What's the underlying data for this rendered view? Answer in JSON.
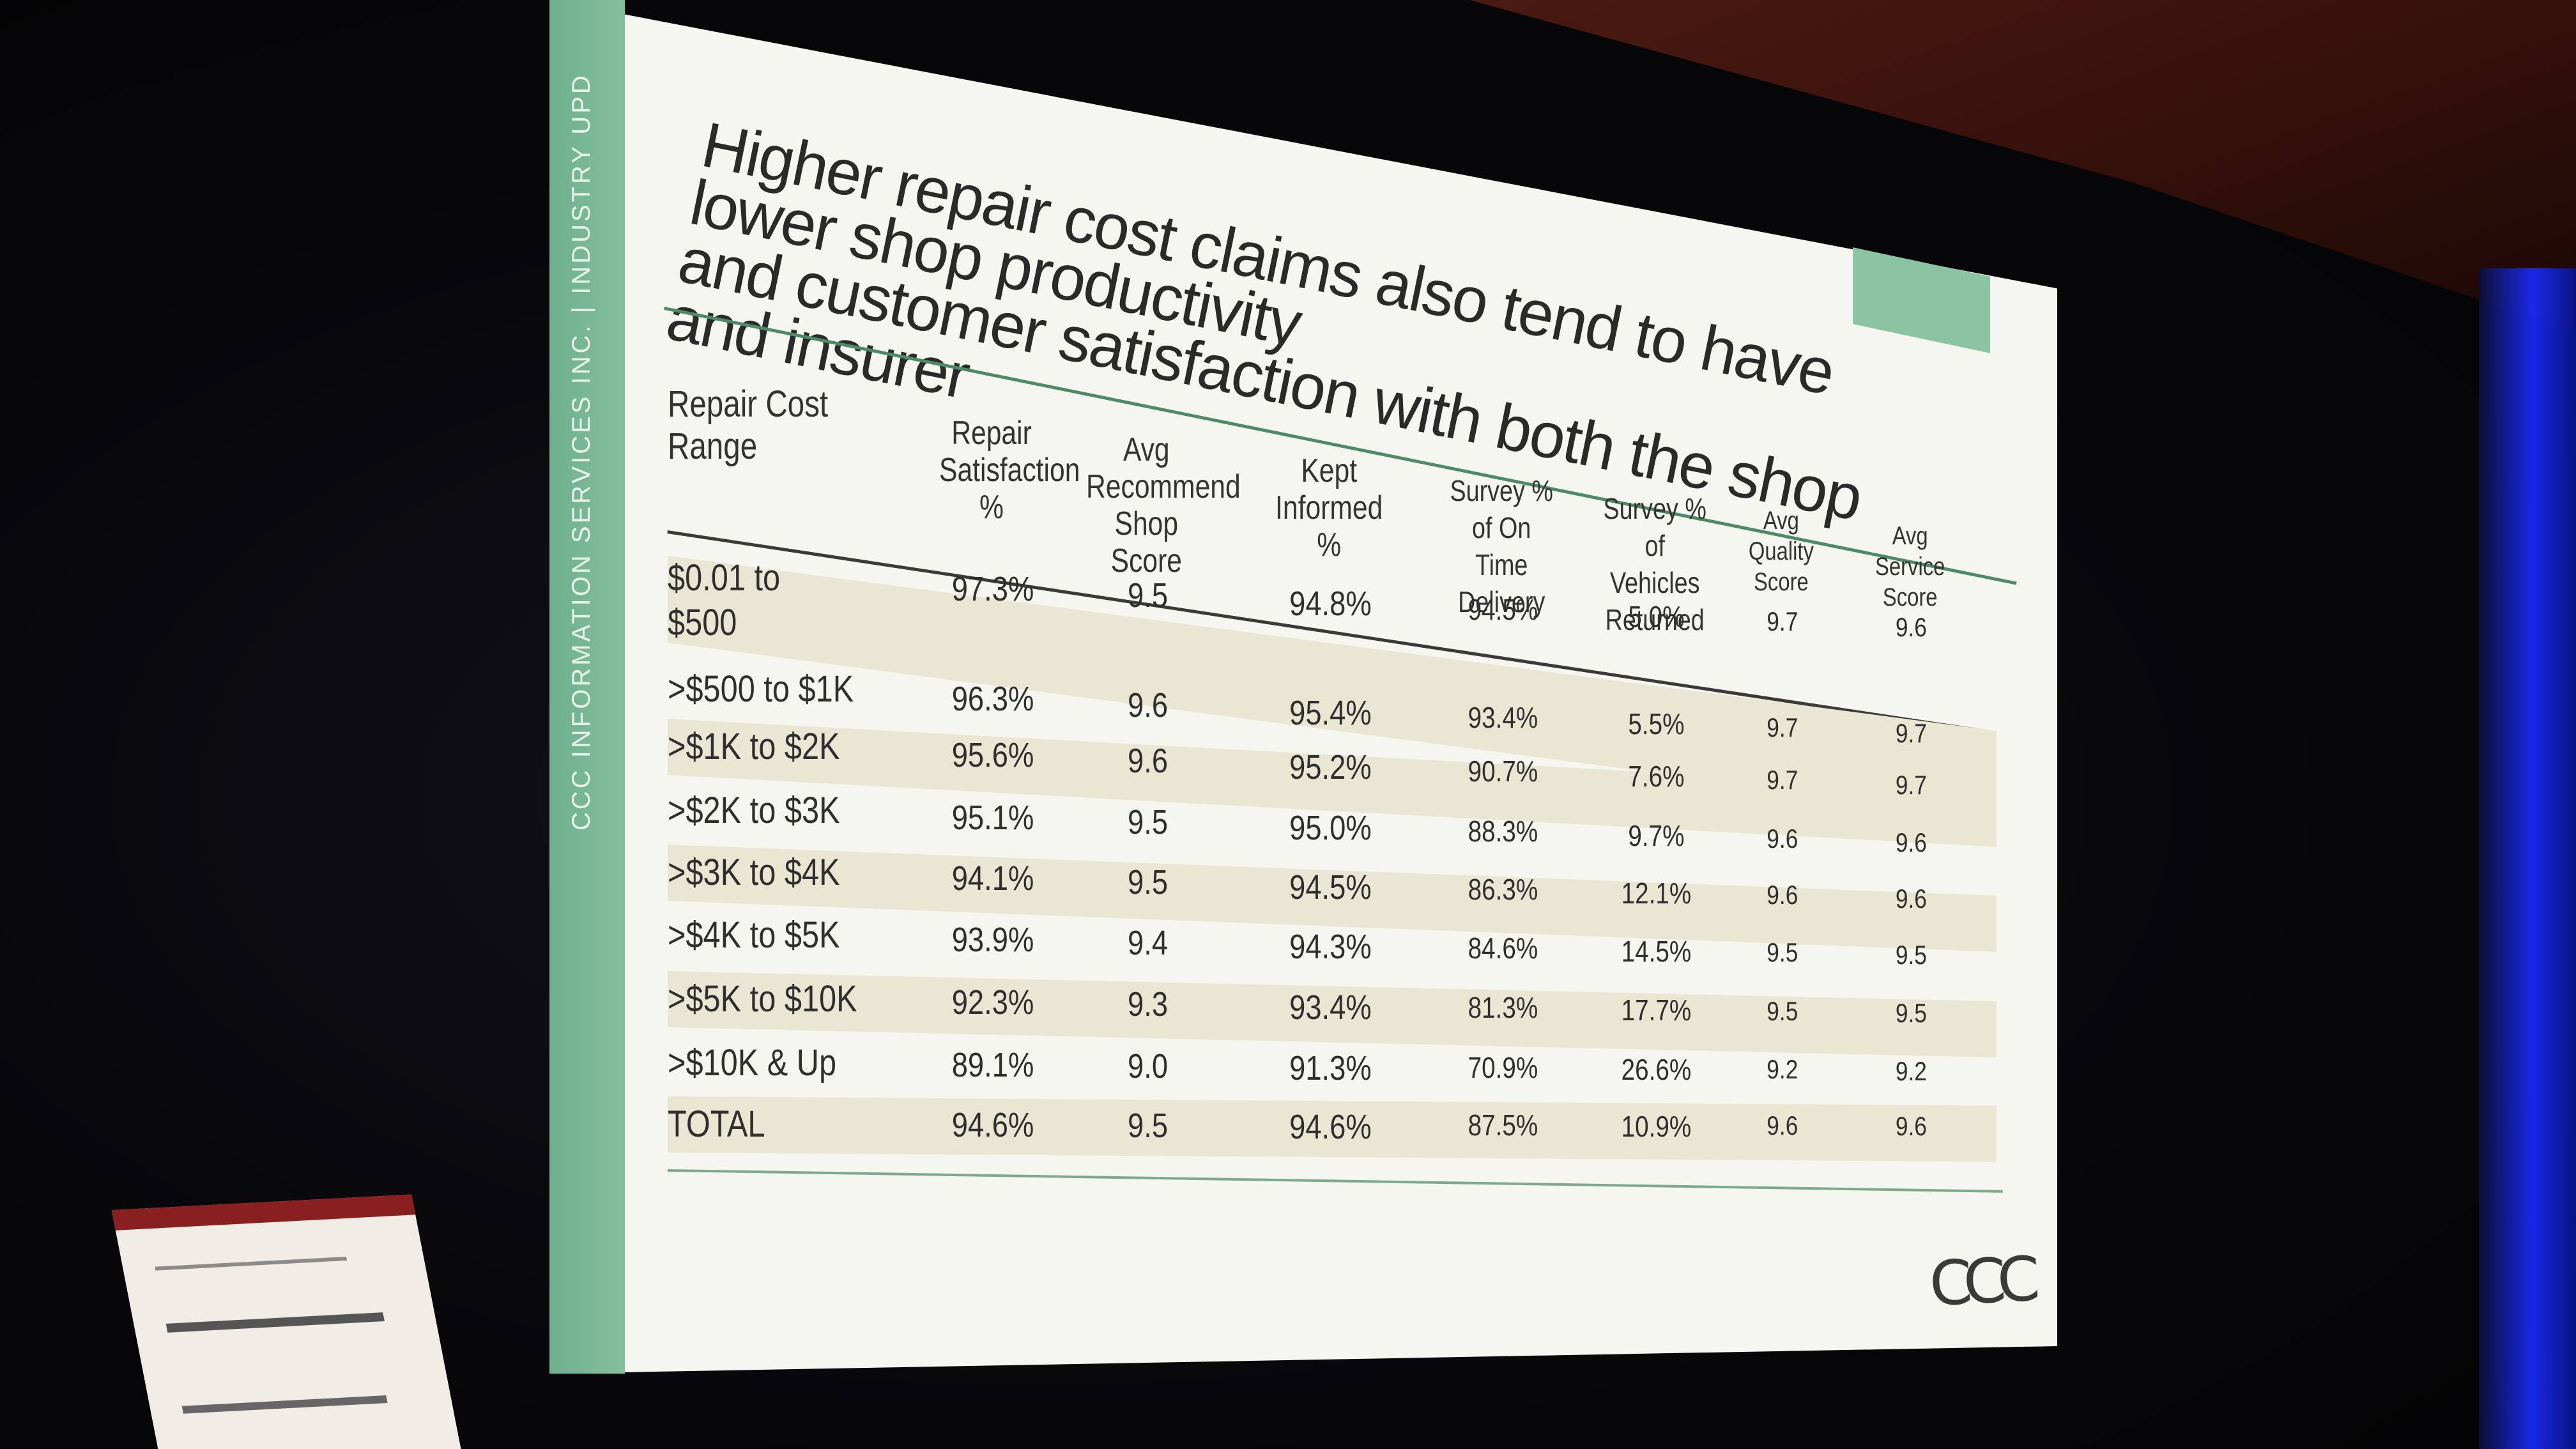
{
  "slide": {
    "side_text": "CCC INFORMATION SERVICES INC. | INDUSTRY UPD",
    "title_line1": "Higher repair cost claims also tend to have lower shop productivity",
    "title_line2": "and customer satisfaction with both the shop and insurer",
    "logo": "CCC",
    "colors": {
      "accent_green": "#83bf9d",
      "row_shade": "#eceadb",
      "text": "#2d2d2d"
    }
  },
  "table": {
    "headers": [
      "Repair Cost Range",
      "Repair Satisfaction %",
      "Avg Recommend Shop Score",
      "Kept Informed %",
      "Survey % of On Time Delivery",
      "Survey % of Vehicles Returned",
      "Avg Quality Score",
      "Avg Service Score"
    ],
    "rows": [
      [
        "$0.01 to $500",
        "97.3%",
        "9.5",
        "94.8%",
        "94.5%",
        "5.0%",
        "9.7",
        "9.6"
      ],
      [
        ">$500 to $1K",
        "96.3%",
        "9.6",
        "95.4%",
        "93.4%",
        "5.5%",
        "9.7",
        "9.7"
      ],
      [
        ">$1K to $2K",
        "95.6%",
        "9.6",
        "95.2%",
        "90.7%",
        "7.6%",
        "9.7",
        "9.7"
      ],
      [
        ">$2K to $3K",
        "95.1%",
        "9.5",
        "95.0%",
        "88.3%",
        "9.7%",
        "9.6",
        "9.6"
      ],
      [
        ">$3K to $4K",
        "94.1%",
        "9.5",
        "94.5%",
        "86.3%",
        "12.1%",
        "9.6",
        "9.6"
      ],
      [
        ">$4K to $5K",
        "93.9%",
        "9.4",
        "94.3%",
        "84.6%",
        "14.5%",
        "9.5",
        "9.5"
      ],
      [
        ">$5K to $10K",
        "92.3%",
        "9.3",
        "93.4%",
        "81.3%",
        "17.7%",
        "9.5",
        "9.5"
      ],
      [
        ">$10K & Up",
        "89.1%",
        "9.0",
        "91.3%",
        "70.9%",
        "26.6%",
        "9.2",
        "9.2"
      ],
      [
        "TOTAL",
        "94.6%",
        "9.5",
        "94.6%",
        "87.5%",
        "10.9%",
        "9.6",
        "9.6"
      ]
    ]
  }
}
